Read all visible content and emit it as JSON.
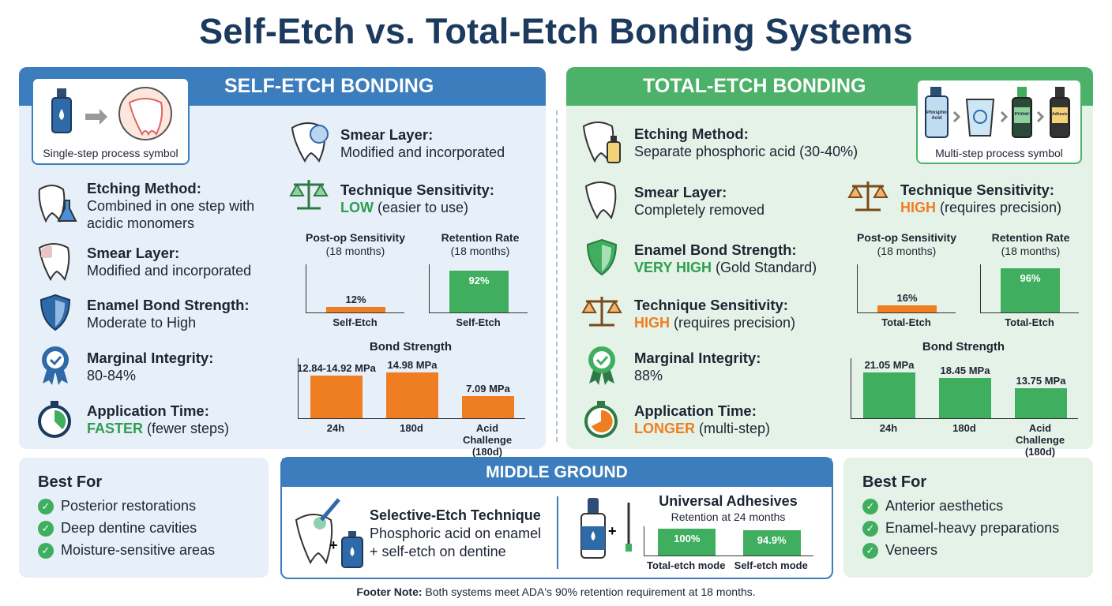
{
  "title": "Self-Etch vs. Total-Etch Bonding Systems",
  "colors": {
    "navy": "#1c3a5e",
    "blue": "#3c7dbd",
    "green": "#4cb169",
    "orange": "#ef7d22",
    "bar_green": "#3fae5f"
  },
  "self_etch": {
    "header": "SELF-ETCH BONDING",
    "symbol_caption": "Single-step process symbol",
    "etching": {
      "label": "Etching Method:",
      "value": "Combined in one step with acidic monomers"
    },
    "smear": {
      "label": "Smear Layer:",
      "value": "Modified and incorporated"
    },
    "enamel": {
      "label": "Enamel Bond Strength:",
      "value": "Moderate to High"
    },
    "marginal": {
      "label": "Marginal Integrity:",
      "value": "80-84%"
    },
    "application": {
      "label": "Application Time:",
      "highlight": "FASTER",
      "value": " (fewer steps)"
    },
    "smear2": {
      "label": "Smear Layer:",
      "value": "Modified and incorporated"
    },
    "technique": {
      "label": "Technique Sensitivity:",
      "highlight": "LOW",
      "value": " (easier to use)"
    }
  },
  "total_etch": {
    "header": "TOTAL-ETCH BONDING",
    "symbol_caption": "Multi-step process symbol",
    "symbol_bottle_labels": [
      "Phosphoric Acid",
      "Primer",
      "Adhesive"
    ],
    "etching": {
      "label": "Etching Method:",
      "value": "Separate phosphoric acid (30-40%)"
    },
    "smear": {
      "label": "Smear Layer:",
      "value": "Completely removed"
    },
    "enamel": {
      "label": "Enamel Bond Strength:",
      "highlight": "VERY HIGH",
      "value": " (Gold Standard)"
    },
    "technique": {
      "label": "Technique Sensitivity:",
      "highlight": "HIGH",
      "value": " (requires precision)"
    },
    "marginal": {
      "label": "Marginal Integrity:",
      "value": "88%"
    },
    "application": {
      "label": "Application Time:",
      "highlight": "LONGER",
      "value": " (multi-step)"
    },
    "technique2": {
      "label": "Technique Sensitivity:",
      "highlight": "HIGH",
      "value": " (requires precision)"
    }
  },
  "chart_data": [
    {
      "id": "se_sens",
      "type": "bar",
      "title": "Post-op Sensitivity",
      "subtitle": "(18 months)",
      "categories": [
        "Self-Etch"
      ],
      "values": [
        12
      ],
      "labels": [
        "12%"
      ],
      "ylim": [
        0,
        100
      ],
      "color": "#ef7d22"
    },
    {
      "id": "se_ret",
      "type": "bar",
      "title": "Retention Rate",
      "subtitle": "(18 months)",
      "categories": [
        "Self-Etch"
      ],
      "values": [
        92
      ],
      "labels": [
        "92%"
      ],
      "ylim": [
        0,
        100
      ],
      "color": "#3fae5f"
    },
    {
      "id": "se_bond",
      "type": "bar",
      "title": "Bond Strength",
      "categories": [
        "24h",
        "180d",
        "Acid Challenge (180d)"
      ],
      "values": [
        [
          12.84,
          14.92
        ],
        14.98,
        7.09
      ],
      "labels": [
        "12.84-14.92 MPa",
        "14.98 MPa",
        "7.09 MPa"
      ],
      "unit": "MPa",
      "color": "#ef7d22"
    },
    {
      "id": "te_sens",
      "type": "bar",
      "title": "Post-op Sensitivity",
      "subtitle": "(18 months)",
      "categories": [
        "Total-Etch"
      ],
      "values": [
        16
      ],
      "labels": [
        "16%"
      ],
      "ylim": [
        0,
        100
      ],
      "color": "#ef7d22"
    },
    {
      "id": "te_ret",
      "type": "bar",
      "title": "Retention Rate",
      "subtitle": "(18 months)",
      "categories": [
        "Total-Etch"
      ],
      "values": [
        96
      ],
      "labels": [
        "96%"
      ],
      "ylim": [
        0,
        100
      ],
      "color": "#3fae5f"
    },
    {
      "id": "te_bond",
      "type": "bar",
      "title": "Bond Strength",
      "categories": [
        "24h",
        "180d",
        "Acid Challenge (180d)"
      ],
      "values": [
        21.05,
        18.45,
        13.75
      ],
      "labels": [
        "21.05 MPa",
        "18.45 MPa",
        "13.75 MPa"
      ],
      "unit": "MPa",
      "color": "#3fae5f"
    },
    {
      "id": "ua",
      "type": "bar",
      "title": "Universal Adhesives",
      "subtitle": "Retention at 24 months",
      "categories": [
        "Total-etch mode",
        "Self-etch mode"
      ],
      "values": [
        100,
        94.9
      ],
      "labels": [
        "100%",
        "94.9%"
      ],
      "ylim": [
        0,
        100
      ],
      "color": "#3fae5f"
    }
  ],
  "best_left": {
    "title": "Best For",
    "items": [
      "Posterior restorations",
      "Deep dentine cavities",
      "Moisture-sensitive areas"
    ]
  },
  "best_right": {
    "title": "Best For",
    "items": [
      "Anterior aesthetics",
      "Enamel-heavy preparations",
      "Veneers"
    ]
  },
  "middle": {
    "header": "MIDDLE GROUND",
    "selective_title": "Selective-Etch Technique",
    "selective_line1": "Phosphoric acid on enamel",
    "selective_line2": "+ self-etch on dentine"
  },
  "footer": {
    "label": "Footer Note:",
    "text": " Both systems meet ADA's 90% retention requirement at 18 months."
  }
}
